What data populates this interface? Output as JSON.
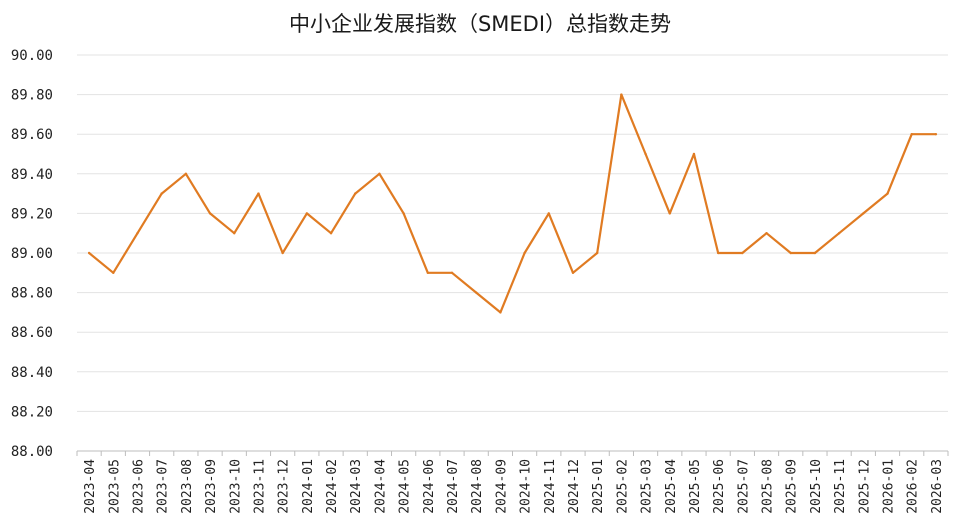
{
  "chart_data": {
    "type": "line",
    "title": "中小企业发展指数（SMEDI）总指数走势",
    "xlabel": "",
    "ylabel": "",
    "ylim": [
      88.0,
      90.0
    ],
    "yticks": [
      "88.00",
      "88.20",
      "88.40",
      "88.60",
      "88.80",
      "89.00",
      "89.20",
      "89.40",
      "89.60",
      "89.80",
      "90.00"
    ],
    "grid": true,
    "legend": "none",
    "line_color": "#E07B22",
    "categories": [
      "2023-04",
      "2023-05",
      "2023-06",
      "2023-07",
      "2023-08",
      "2023-09",
      "2023-10",
      "2023-11",
      "2023-12",
      "2024-01",
      "2024-02",
      "2024-03",
      "2024-04",
      "2024-05",
      "2024-06",
      "2024-07",
      "2024-08",
      "2024-09",
      "2024-10",
      "2024-11",
      "2024-12",
      "2025-01",
      "2025-02",
      "2025-03",
      "2025-04",
      "2025-05",
      "2025-06",
      "2025-07",
      "2025-08",
      "2025-09",
      "2025-10",
      "2025-11",
      "2025-12",
      "2026-01",
      "2026-02",
      "2026-03"
    ],
    "series": [
      {
        "values": [
          89.0,
          88.9,
          89.1,
          89.3,
          89.4,
          89.2,
          89.1,
          89.3,
          89.0,
          89.2,
          89.1,
          89.3,
          89.4,
          89.2,
          88.9,
          88.9,
          88.8,
          88.7,
          89.0,
          89.2,
          88.9,
          89.0,
          89.8,
          89.5,
          89.2,
          89.5,
          89.0,
          89.0,
          89.1,
          89.0,
          89.0,
          89.1,
          89.2,
          89.3,
          89.6,
          89.6
        ]
      }
    ]
  }
}
